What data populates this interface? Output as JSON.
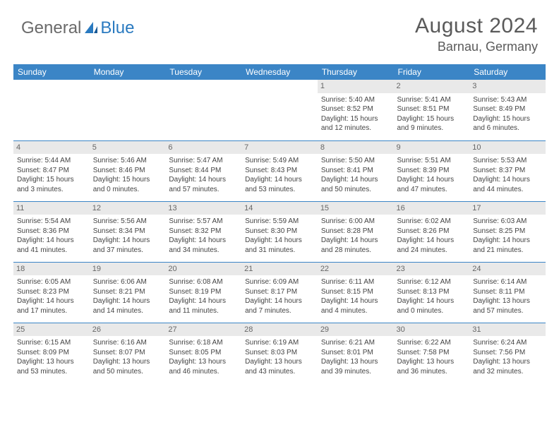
{
  "logo": {
    "word1": "General",
    "word2": "Blue"
  },
  "title": "August 2024",
  "location": "Barnau, Germany",
  "header_bg": "#3b85c6",
  "daynames": [
    "Sunday",
    "Monday",
    "Tuesday",
    "Wednesday",
    "Thursday",
    "Friday",
    "Saturday"
  ],
  "weeks": [
    [
      {
        "n": "",
        "sr": "",
        "ss": "",
        "d1": "",
        "d2": ""
      },
      {
        "n": "",
        "sr": "",
        "ss": "",
        "d1": "",
        "d2": ""
      },
      {
        "n": "",
        "sr": "",
        "ss": "",
        "d1": "",
        "d2": ""
      },
      {
        "n": "",
        "sr": "",
        "ss": "",
        "d1": "",
        "d2": ""
      },
      {
        "n": "1",
        "sr": "Sunrise: 5:40 AM",
        "ss": "Sunset: 8:52 PM",
        "d1": "Daylight: 15 hours",
        "d2": "and 12 minutes."
      },
      {
        "n": "2",
        "sr": "Sunrise: 5:41 AM",
        "ss": "Sunset: 8:51 PM",
        "d1": "Daylight: 15 hours",
        "d2": "and 9 minutes."
      },
      {
        "n": "3",
        "sr": "Sunrise: 5:43 AM",
        "ss": "Sunset: 8:49 PM",
        "d1": "Daylight: 15 hours",
        "d2": "and 6 minutes."
      }
    ],
    [
      {
        "n": "4",
        "sr": "Sunrise: 5:44 AM",
        "ss": "Sunset: 8:47 PM",
        "d1": "Daylight: 15 hours",
        "d2": "and 3 minutes."
      },
      {
        "n": "5",
        "sr": "Sunrise: 5:46 AM",
        "ss": "Sunset: 8:46 PM",
        "d1": "Daylight: 15 hours",
        "d2": "and 0 minutes."
      },
      {
        "n": "6",
        "sr": "Sunrise: 5:47 AM",
        "ss": "Sunset: 8:44 PM",
        "d1": "Daylight: 14 hours",
        "d2": "and 57 minutes."
      },
      {
        "n": "7",
        "sr": "Sunrise: 5:49 AM",
        "ss": "Sunset: 8:43 PM",
        "d1": "Daylight: 14 hours",
        "d2": "and 53 minutes."
      },
      {
        "n": "8",
        "sr": "Sunrise: 5:50 AM",
        "ss": "Sunset: 8:41 PM",
        "d1": "Daylight: 14 hours",
        "d2": "and 50 minutes."
      },
      {
        "n": "9",
        "sr": "Sunrise: 5:51 AM",
        "ss": "Sunset: 8:39 PM",
        "d1": "Daylight: 14 hours",
        "d2": "and 47 minutes."
      },
      {
        "n": "10",
        "sr": "Sunrise: 5:53 AM",
        "ss": "Sunset: 8:37 PM",
        "d1": "Daylight: 14 hours",
        "d2": "and 44 minutes."
      }
    ],
    [
      {
        "n": "11",
        "sr": "Sunrise: 5:54 AM",
        "ss": "Sunset: 8:36 PM",
        "d1": "Daylight: 14 hours",
        "d2": "and 41 minutes."
      },
      {
        "n": "12",
        "sr": "Sunrise: 5:56 AM",
        "ss": "Sunset: 8:34 PM",
        "d1": "Daylight: 14 hours",
        "d2": "and 37 minutes."
      },
      {
        "n": "13",
        "sr": "Sunrise: 5:57 AM",
        "ss": "Sunset: 8:32 PM",
        "d1": "Daylight: 14 hours",
        "d2": "and 34 minutes."
      },
      {
        "n": "14",
        "sr": "Sunrise: 5:59 AM",
        "ss": "Sunset: 8:30 PM",
        "d1": "Daylight: 14 hours",
        "d2": "and 31 minutes."
      },
      {
        "n": "15",
        "sr": "Sunrise: 6:00 AM",
        "ss": "Sunset: 8:28 PM",
        "d1": "Daylight: 14 hours",
        "d2": "and 28 minutes."
      },
      {
        "n": "16",
        "sr": "Sunrise: 6:02 AM",
        "ss": "Sunset: 8:26 PM",
        "d1": "Daylight: 14 hours",
        "d2": "and 24 minutes."
      },
      {
        "n": "17",
        "sr": "Sunrise: 6:03 AM",
        "ss": "Sunset: 8:25 PM",
        "d1": "Daylight: 14 hours",
        "d2": "and 21 minutes."
      }
    ],
    [
      {
        "n": "18",
        "sr": "Sunrise: 6:05 AM",
        "ss": "Sunset: 8:23 PM",
        "d1": "Daylight: 14 hours",
        "d2": "and 17 minutes."
      },
      {
        "n": "19",
        "sr": "Sunrise: 6:06 AM",
        "ss": "Sunset: 8:21 PM",
        "d1": "Daylight: 14 hours",
        "d2": "and 14 minutes."
      },
      {
        "n": "20",
        "sr": "Sunrise: 6:08 AM",
        "ss": "Sunset: 8:19 PM",
        "d1": "Daylight: 14 hours",
        "d2": "and 11 minutes."
      },
      {
        "n": "21",
        "sr": "Sunrise: 6:09 AM",
        "ss": "Sunset: 8:17 PM",
        "d1": "Daylight: 14 hours",
        "d2": "and 7 minutes."
      },
      {
        "n": "22",
        "sr": "Sunrise: 6:11 AM",
        "ss": "Sunset: 8:15 PM",
        "d1": "Daylight: 14 hours",
        "d2": "and 4 minutes."
      },
      {
        "n": "23",
        "sr": "Sunrise: 6:12 AM",
        "ss": "Sunset: 8:13 PM",
        "d1": "Daylight: 14 hours",
        "d2": "and 0 minutes."
      },
      {
        "n": "24",
        "sr": "Sunrise: 6:14 AM",
        "ss": "Sunset: 8:11 PM",
        "d1": "Daylight: 13 hours",
        "d2": "and 57 minutes."
      }
    ],
    [
      {
        "n": "25",
        "sr": "Sunrise: 6:15 AM",
        "ss": "Sunset: 8:09 PM",
        "d1": "Daylight: 13 hours",
        "d2": "and 53 minutes."
      },
      {
        "n": "26",
        "sr": "Sunrise: 6:16 AM",
        "ss": "Sunset: 8:07 PM",
        "d1": "Daylight: 13 hours",
        "d2": "and 50 minutes."
      },
      {
        "n": "27",
        "sr": "Sunrise: 6:18 AM",
        "ss": "Sunset: 8:05 PM",
        "d1": "Daylight: 13 hours",
        "d2": "and 46 minutes."
      },
      {
        "n": "28",
        "sr": "Sunrise: 6:19 AM",
        "ss": "Sunset: 8:03 PM",
        "d1": "Daylight: 13 hours",
        "d2": "and 43 minutes."
      },
      {
        "n": "29",
        "sr": "Sunrise: 6:21 AM",
        "ss": "Sunset: 8:01 PM",
        "d1": "Daylight: 13 hours",
        "d2": "and 39 minutes."
      },
      {
        "n": "30",
        "sr": "Sunrise: 6:22 AM",
        "ss": "Sunset: 7:58 PM",
        "d1": "Daylight: 13 hours",
        "d2": "and 36 minutes."
      },
      {
        "n": "31",
        "sr": "Sunrise: 6:24 AM",
        "ss": "Sunset: 7:56 PM",
        "d1": "Daylight: 13 hours",
        "d2": "and 32 minutes."
      }
    ]
  ]
}
